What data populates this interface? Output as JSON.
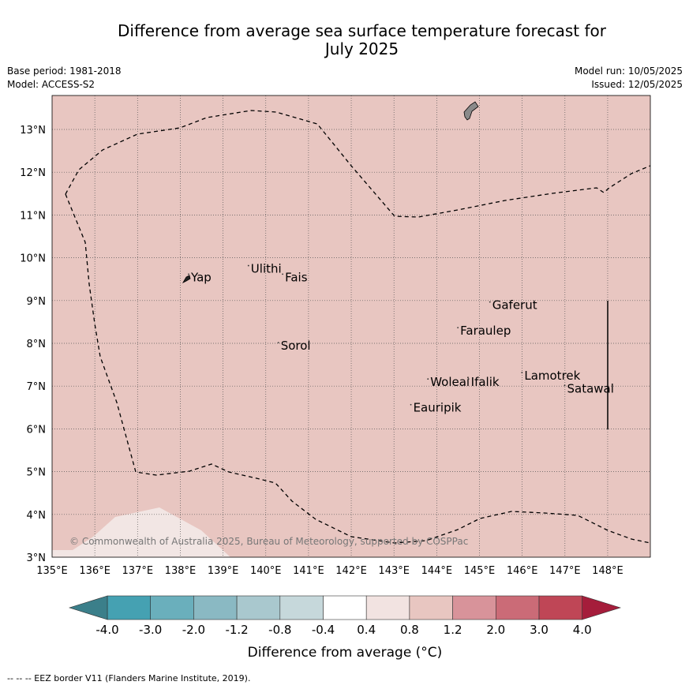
{
  "title": {
    "line1": "Difference from average sea surface temperature forecast for",
    "line2": "July 2025"
  },
  "info": {
    "base_period": "Base period: 1981-2018",
    "model": "Model: ACCESS-S2",
    "model_run": "Model run: 10/05/2025",
    "issued": "Issued: 12/05/2025"
  },
  "map": {
    "lon_range": [
      135,
      149
    ],
    "lat_range": [
      3,
      13.8
    ],
    "background_color": "#e8c6c1",
    "lon_ticks": [
      "135°E",
      "136°E",
      "137°E",
      "138°E",
      "139°E",
      "140°E",
      "141°E",
      "142°E",
      "143°E",
      "144°E",
      "145°E",
      "146°E",
      "147°E",
      "148°E"
    ],
    "lat_ticks": [
      "3°N",
      "4°N",
      "5°N",
      "6°N",
      "7°N",
      "8°N",
      "9°N",
      "10°N",
      "11°N",
      "12°N",
      "13°N"
    ],
    "places": [
      {
        "name": "Yap",
        "lon": 138.25,
        "lat": 9.45
      },
      {
        "name": "Ulithi",
        "lon": 139.65,
        "lat": 9.65
      },
      {
        "name": "Fais",
        "lon": 140.45,
        "lat": 9.45
      },
      {
        "name": "Gaferut",
        "lon": 145.3,
        "lat": 8.8
      },
      {
        "name": "Faraulep",
        "lon": 144.55,
        "lat": 8.2
      },
      {
        "name": "Sorol",
        "lon": 140.35,
        "lat": 7.85
      },
      {
        "name": "Lamotrek",
        "lon": 146.05,
        "lat": 7.15
      },
      {
        "name": "Woleai",
        "lon": 143.85,
        "lat": 7.0
      },
      {
        "name": "Ifalik",
        "lon": 144.8,
        "lat": 7.0
      },
      {
        "name": "Satawal",
        "lon": 147.05,
        "lat": 6.85
      },
      {
        "name": "Eauripik",
        "lon": 143.45,
        "lat": 6.4
      }
    ],
    "copyright": "© Commonwealth of Australia 2025, Bureau of Meteorology, supported by COSPPac"
  },
  "colorbar": {
    "title": "Difference from average (°C)",
    "labels": [
      "-4.0",
      "-3.0",
      "-2.0",
      "-1.2",
      "-0.8",
      "-0.4",
      "0.4",
      "0.8",
      "1.2",
      "2.0",
      "3.0",
      "4.0"
    ],
    "colors": [
      "#45a1b2",
      "#6aafbc",
      "#8ab9c3",
      "#a9c8ce",
      "#c6d8db",
      "#ffffff",
      "#f2e3e1",
      "#e8c6c1",
      "#d8939a",
      "#cb6b77",
      "#bf4656"
    ],
    "under_color": "#3b7f8a",
    "over_color": "#a51d3b"
  },
  "footer": "-- -- -- EEZ border V11 (Flanders Marine Institute, 2019)."
}
